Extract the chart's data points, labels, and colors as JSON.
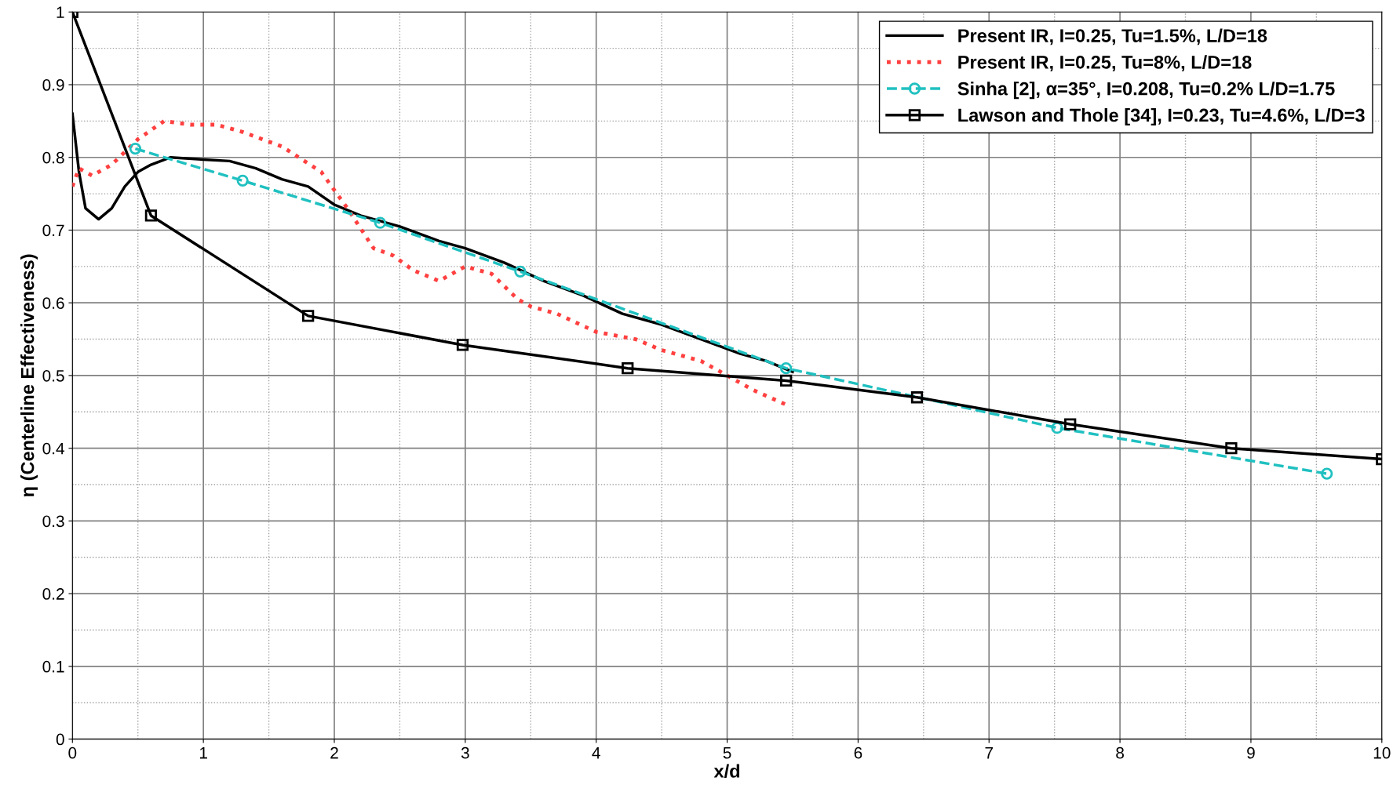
{
  "chart_data": {
    "type": "line",
    "xlabel": "x/d",
    "ylabel": "η (Centerline Effectiveness)",
    "xlim": [
      0,
      10
    ],
    "ylim": [
      0,
      1
    ],
    "xticks": [
      0,
      1,
      2,
      3,
      4,
      5,
      6,
      7,
      8,
      9,
      10
    ],
    "yticks": [
      0,
      0.1,
      0.2,
      0.3,
      0.4,
      0.5,
      0.6,
      0.7,
      0.8,
      0.9,
      1
    ],
    "grid": true,
    "legend": "top right",
    "series": [
      {
        "name": "Present IR, I=0.25, Tu=1.5%, L/D=18",
        "color": "#000000",
        "line_style": "solid",
        "marker": "none",
        "x": [
          0,
          0.05,
          0.1,
          0.2,
          0.3,
          0.4,
          0.5,
          0.6,
          0.75,
          1.0,
          1.2,
          1.4,
          1.6,
          1.8,
          2.0,
          2.2,
          2.5,
          2.8,
          3.0,
          3.3,
          3.6,
          3.9,
          4.2,
          4.5,
          4.8,
          5.1,
          5.3,
          5.5
        ],
        "values": [
          0.86,
          0.78,
          0.73,
          0.715,
          0.73,
          0.76,
          0.78,
          0.79,
          0.8,
          0.797,
          0.795,
          0.785,
          0.77,
          0.76,
          0.735,
          0.72,
          0.705,
          0.685,
          0.675,
          0.655,
          0.63,
          0.61,
          0.585,
          0.57,
          0.55,
          0.53,
          0.52,
          0.505
        ]
      },
      {
        "name": "Present IR, I=0.25, Tu=8%, L/D=18",
        "color": "#ff4040",
        "line_style": "dotted",
        "marker": "none",
        "x": [
          0,
          0.05,
          0.15,
          0.3,
          0.5,
          0.7,
          0.9,
          1.1,
          1.3,
          1.6,
          1.9,
          2.1,
          2.3,
          2.45,
          2.6,
          2.8,
          3.0,
          3.2,
          3.4,
          3.5,
          3.7,
          4.0,
          4.3,
          4.5,
          4.8,
          5.0,
          5.2,
          5.45
        ],
        "values": [
          0.76,
          0.785,
          0.775,
          0.79,
          0.825,
          0.85,
          0.845,
          0.845,
          0.835,
          0.815,
          0.78,
          0.73,
          0.675,
          0.665,
          0.645,
          0.63,
          0.65,
          0.64,
          0.605,
          0.595,
          0.585,
          0.56,
          0.55,
          0.535,
          0.52,
          0.5,
          0.48,
          0.46
        ]
      },
      {
        "name": "Sinha [2], α=35°, I=0.208, Tu=0.2% L/D=1.75",
        "color": "#20c0c0",
        "line_style": "dashed",
        "marker": "circle",
        "x": [
          0.48,
          1.3,
          2.35,
          3.42,
          5.45,
          7.52,
          9.58
        ],
        "values": [
          0.812,
          0.768,
          0.71,
          0.643,
          0.51,
          0.428,
          0.365
        ]
      },
      {
        "name": "Lawson and Thole [34], I=0.23, Tu=4.6%, L/D=3",
        "color": "#000000",
        "line_style": "solid",
        "marker": "square",
        "x": [
          0,
          0.6,
          1.8,
          2.98,
          4.24,
          5.45,
          6.45,
          7.62,
          8.85,
          10
        ],
        "values": [
          1.0,
          0.72,
          0.582,
          0.542,
          0.51,
          0.493,
          0.47,
          0.433,
          0.4,
          0.385
        ]
      }
    ]
  }
}
